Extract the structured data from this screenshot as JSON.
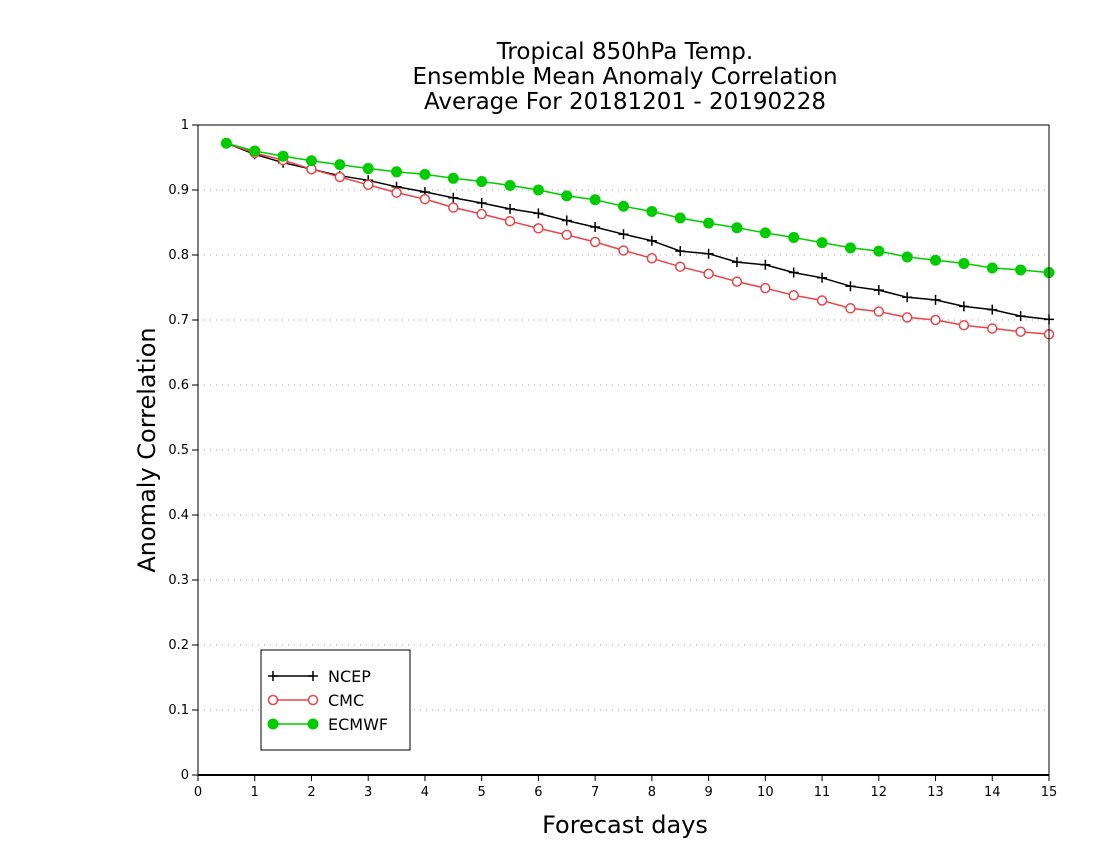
{
  "chart_data": {
    "type": "line",
    "title_lines": [
      "Tropical 850hPa Temp.",
      "Ensemble Mean Anomaly Correlation",
      "Average For 20181201 - 20190228"
    ],
    "xlabel": "Forecast days",
    "ylabel": "Anomaly Correlation",
    "xlim": [
      0,
      15
    ],
    "ylim": [
      0,
      1
    ],
    "xticks": [
      0,
      1,
      2,
      3,
      4,
      5,
      6,
      7,
      8,
      9,
      10,
      11,
      12,
      13,
      14,
      15
    ],
    "xtick_labels": [
      "0",
      "1",
      "2",
      "3",
      "4",
      "5",
      "6",
      "7",
      "8",
      "9",
      "10",
      "11",
      "12",
      "13",
      "14",
      "15"
    ],
    "yticks": [
      0,
      0.1,
      0.2,
      0.3,
      0.4,
      0.5,
      0.6,
      0.7,
      0.8,
      0.9,
      1
    ],
    "ytick_labels": [
      "0",
      "0.1",
      "0.2",
      "0.3",
      "0.4",
      "0.5",
      "0.6",
      "0.7",
      "0.8",
      "0.9",
      "1"
    ],
    "grid": "horizontal dotted",
    "legend_position": "bottom-left",
    "x": [
      0.5,
      1,
      1.5,
      2,
      2.5,
      3,
      3.5,
      4,
      4.5,
      5,
      5.5,
      6,
      6.5,
      7,
      7.5,
      8,
      8.5,
      9,
      9.5,
      10,
      10.5,
      11,
      11.5,
      12,
      12.5,
      13,
      13.5,
      14,
      14.5,
      15
    ],
    "series": [
      {
        "name": "NCEP",
        "color": "#000000",
        "marker": "plus",
        "values": [
          0.972,
          0.955,
          0.942,
          0.932,
          0.922,
          0.915,
          0.905,
          0.897,
          0.888,
          0.88,
          0.871,
          0.864,
          0.853,
          0.843,
          0.832,
          0.822,
          0.806,
          0.802,
          0.789,
          0.785,
          0.773,
          0.765,
          0.752,
          0.746,
          0.735,
          0.731,
          0.721,
          0.716,
          0.706,
          0.701
        ]
      },
      {
        "name": "CMC",
        "color": "#e8454a",
        "marker": "open-circle",
        "values": [
          0.972,
          0.957,
          0.946,
          0.932,
          0.92,
          0.908,
          0.896,
          0.886,
          0.873,
          0.863,
          0.852,
          0.841,
          0.831,
          0.82,
          0.807,
          0.795,
          0.782,
          0.771,
          0.759,
          0.749,
          0.738,
          0.73,
          0.718,
          0.713,
          0.704,
          0.7,
          0.692,
          0.687,
          0.682,
          0.678
        ]
      },
      {
        "name": "ECMWF",
        "color": "#00cc00",
        "marker": "filled-circle",
        "values": [
          0.972,
          0.96,
          0.952,
          0.945,
          0.939,
          0.933,
          0.928,
          0.924,
          0.918,
          0.913,
          0.907,
          0.9,
          0.891,
          0.885,
          0.875,
          0.867,
          0.857,
          0.849,
          0.842,
          0.834,
          0.827,
          0.819,
          0.811,
          0.806,
          0.797,
          0.792,
          0.787,
          0.78,
          0.777,
          0.773
        ]
      }
    ]
  }
}
